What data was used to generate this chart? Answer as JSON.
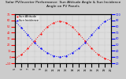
{
  "title": "Solar PV/Inverter Performance  Sun Altitude Angle & Sun Incidence Angle on PV Panels",
  "legend": [
    "Sun Altitude",
    "Sun Incidence"
  ],
  "line_colors": [
    "red",
    "blue"
  ],
  "bg_color": "#cccccc",
  "plot_bg": "#dddddd",
  "x_values": [
    5,
    6,
    7,
    8,
    9,
    10,
    11,
    12,
    13,
    14,
    15,
    16,
    17,
    18,
    19,
    20
  ],
  "sun_altitude": [
    -2,
    4,
    14,
    26,
    38,
    49,
    56,
    59,
    56,
    49,
    38,
    26,
    14,
    4,
    -2,
    -6
  ],
  "sun_incidence": [
    88,
    78,
    66,
    54,
    44,
    37,
    32,
    30,
    32,
    37,
    44,
    54,
    66,
    78,
    88,
    93
  ],
  "ylim_left": [
    -10,
    70
  ],
  "ylim_right": [
    20,
    100
  ],
  "xlim": [
    5,
    20
  ],
  "right_yticks": [
    80,
    70,
    60,
    50,
    40,
    30
  ],
  "right_yticklabels": [
    "80",
    "70",
    "60",
    "50",
    "40",
    "30"
  ],
  "title_fontsize": 3.2,
  "label_fontsize": 2.8,
  "tick_fontsize": 2.5,
  "legend_fontsize": 2.5,
  "grid_color": "#999999",
  "marker_size": 1.2,
  "linewidth": 0.7
}
